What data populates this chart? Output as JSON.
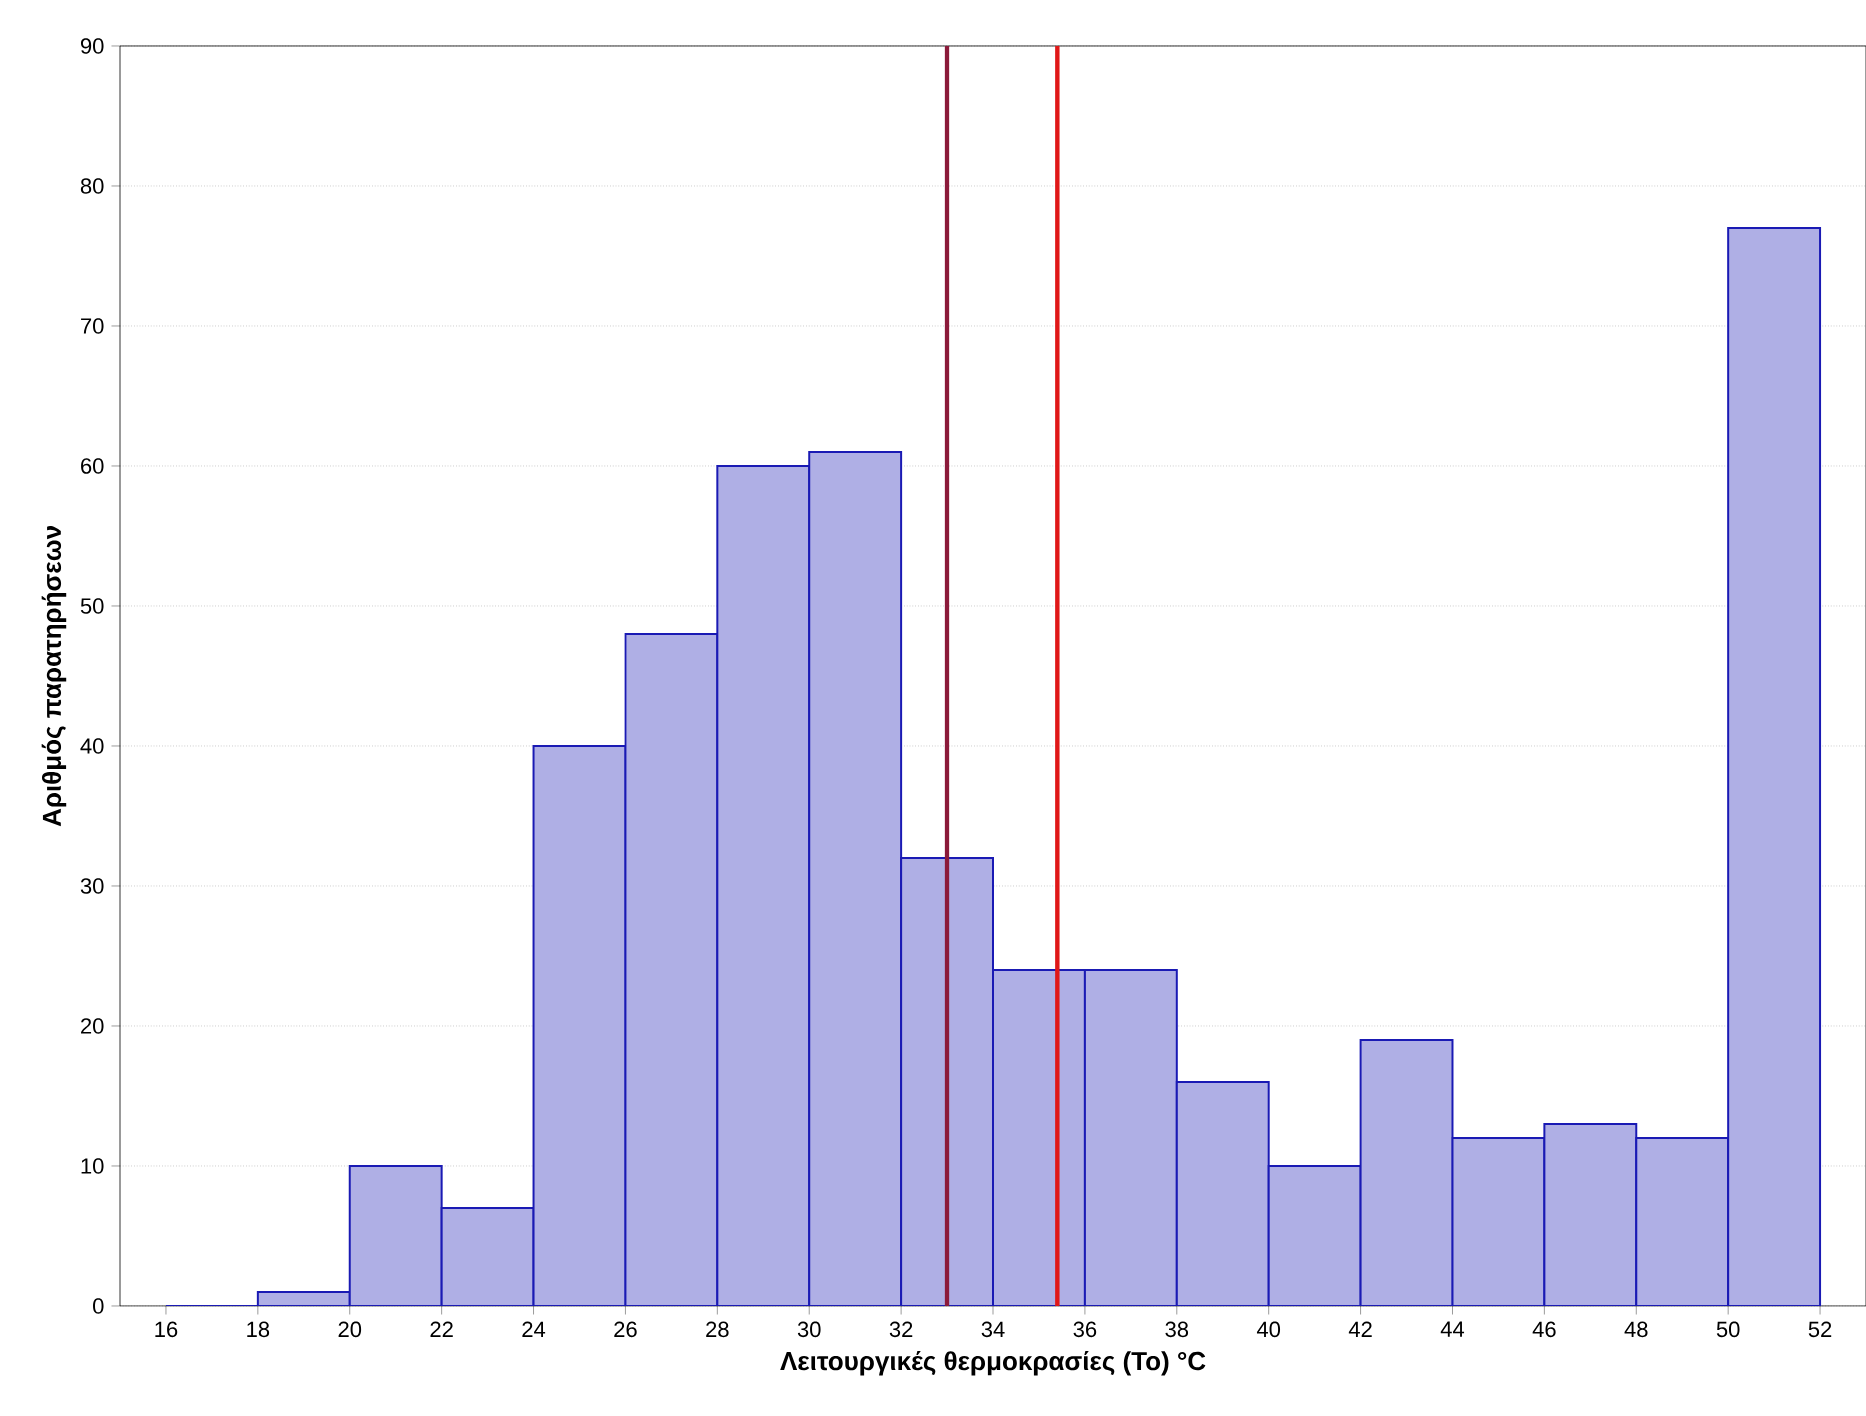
{
  "chart_data": {
    "type": "histogram",
    "xlabel": "Λειτουργικές θερμοκρασίες (To) °C",
    "ylabel": "Αριθμός παρατηρήσεων",
    "bins": [
      16,
      18,
      20,
      22,
      24,
      26,
      28,
      30,
      32,
      34,
      36,
      38,
      40,
      42,
      44,
      46,
      48,
      50,
      52
    ],
    "values": [
      0,
      1,
      10,
      7,
      40,
      48,
      60,
      61,
      32,
      24,
      24,
      16,
      10,
      19,
      12,
      13,
      12,
      77
    ],
    "color": "#1a1ab4",
    "xlim": [
      15,
      53
    ],
    "ylim": [
      0,
      90
    ],
    "xticks": [
      16,
      18,
      20,
      22,
      24,
      26,
      28,
      30,
      32,
      34,
      36,
      38,
      40,
      42,
      44,
      46,
      48,
      50,
      52
    ],
    "yticks": [
      0,
      10,
      20,
      30,
      40,
      50,
      60,
      70,
      80,
      90
    ],
    "grid": "y",
    "ref_lines": [
      {
        "axis": "x",
        "value": 33,
        "color": "#8b1a3a"
      },
      {
        "axis": "x",
        "value": 35.4,
        "color": "#e01818"
      }
    ]
  }
}
